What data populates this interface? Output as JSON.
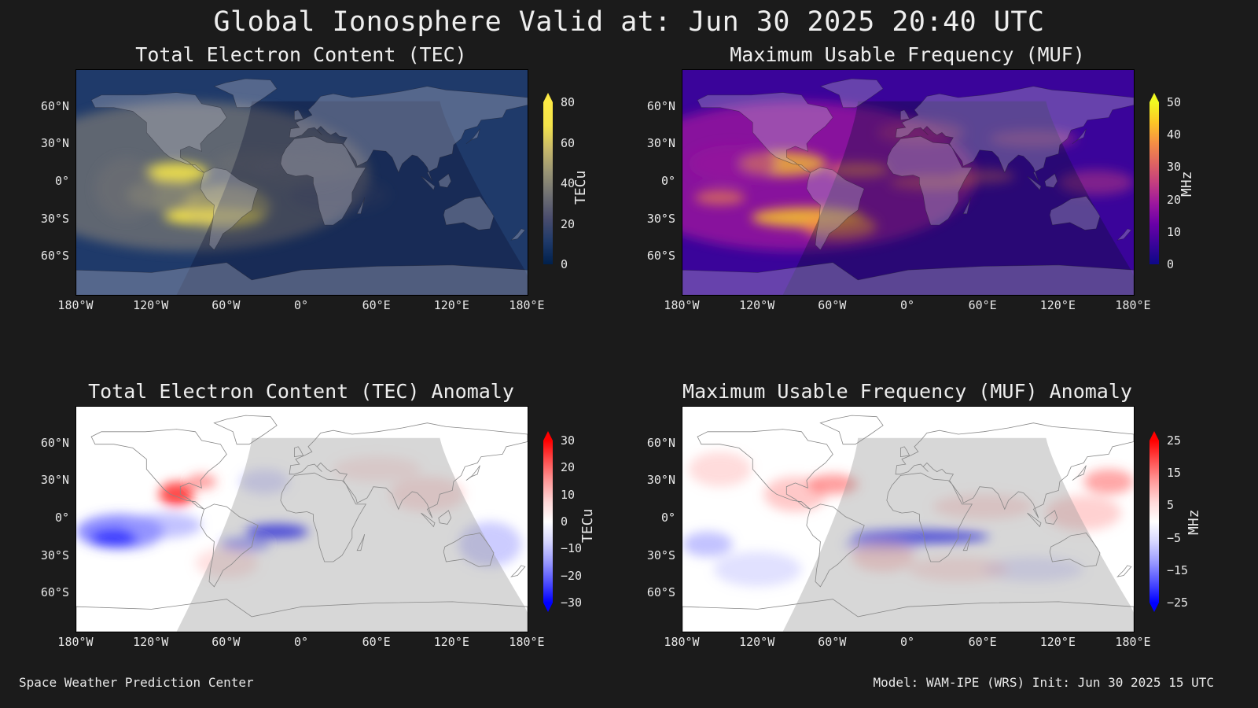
{
  "title": "Global Ionosphere Valid at: Jun 30 2025 20:40 UTC",
  "lat_ticks": [
    "60°N",
    "30°N",
    "0°",
    "30°S",
    "60°S"
  ],
  "lon_ticks": [
    "180°W",
    "120°W",
    "60°W",
    "0°",
    "60°E",
    "120°E",
    "180°E"
  ],
  "panels": [
    {
      "id": "tec",
      "title": "Total Electron Content (TEC)",
      "unit": "TECu",
      "ticks": [
        "80",
        "60",
        "40",
        "20",
        "0"
      ],
      "colormap": [
        "#00204c",
        "#1f3a6a",
        "#4a4d6e",
        "#707173",
        "#9a9575",
        "#c8b96a",
        "#f3e34b",
        "#fdea45"
      ],
      "extend": "max",
      "background": "#0a2a5a"
    },
    {
      "id": "muf",
      "title": "Maximum Usable Frequency (MUF)",
      "unit": "MHz",
      "ticks": [
        "50",
        "40",
        "30",
        "20",
        "10",
        "0"
      ],
      "colormap": [
        "#0d0887",
        "#3a049a",
        "#6a00a8",
        "#9c179e",
        "#c33d80",
        "#e06461",
        "#f68f44",
        "#fcc626",
        "#f0f921"
      ],
      "extend": "max",
      "background": "#5b10a0"
    },
    {
      "id": "tec-anomaly",
      "title": "Total Electron Content (TEC) Anomaly",
      "unit": "TECu",
      "ticks": [
        "30",
        "20",
        "10",
        "0",
        "−10",
        "−20",
        "−30"
      ],
      "colormap": [
        "#0000ff",
        "#5050ff",
        "#9a9aff",
        "#d6d6ff",
        "#ffffff",
        "#ffd6d6",
        "#ff9a9a",
        "#ff5050",
        "#ff0000"
      ],
      "extend": "both",
      "background": "#ffffff"
    },
    {
      "id": "muf-anomaly",
      "title": "Maximum Usable Frequency (MUF) Anomaly",
      "unit": "MHz",
      "ticks": [
        "25",
        "15",
        "5",
        "−5",
        "−15",
        "−25"
      ],
      "colormap": [
        "#0000ff",
        "#5050ff",
        "#9a9aff",
        "#d6d6ff",
        "#ffffff",
        "#ffd6d6",
        "#ff9a9a",
        "#ff5050",
        "#ff0000"
      ],
      "extend": "both",
      "background": "#ffffff"
    }
  ],
  "footer": {
    "left": "Space Weather Prediction Center",
    "right": "Model: WAM-IPE (WRS) Init: Jun 30 2025 15 UTC"
  }
}
